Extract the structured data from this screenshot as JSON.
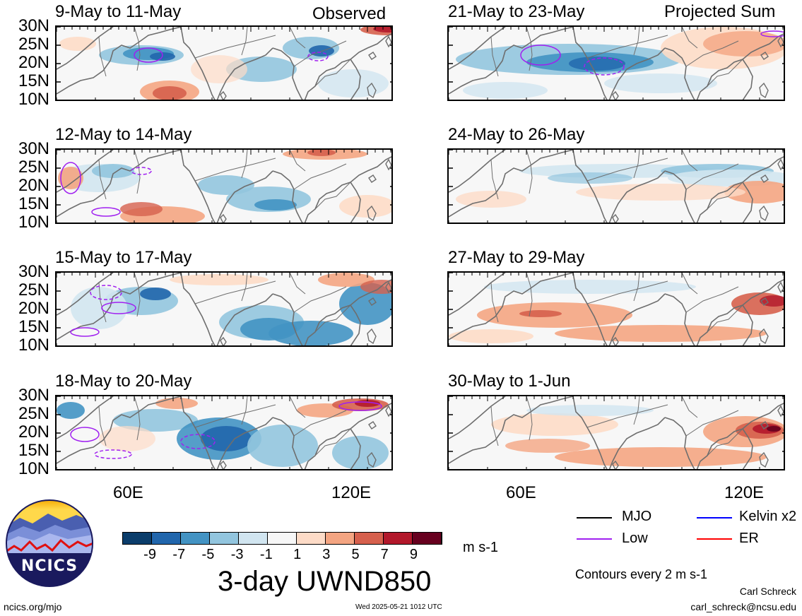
{
  "colors": {
    "neg9": "#0b3d6b",
    "neg7": "#2166ac",
    "neg5": "#4393c3",
    "neg3": "#92c5de",
    "neg1": "#d1e5f0",
    "zero": "#f7f7f7",
    "pos1": "#fddbc7",
    "pos3": "#f4a582",
    "pos5": "#d6604d",
    "pos7": "#b2182b",
    "pos9": "#67001f",
    "coast": "#6e6e6e",
    "mjo": "#000000",
    "low": "#a020f0",
    "kelvin": "#0000ff",
    "er": "#ff0000"
  },
  "headers": {
    "observed": "Observed",
    "projected": "Projected Sum"
  },
  "panels": [
    {
      "label": "9-May to 11-May"
    },
    {
      "label": "12-May to 14-May"
    },
    {
      "label": "15-May to 17-May"
    },
    {
      "label": "18-May to 20-May"
    },
    {
      "label": "21-May to 23-May"
    },
    {
      "label": "24-May to 26-May"
    },
    {
      "label": "27-May to 29-May"
    },
    {
      "label": "30-May to 1-Jun"
    }
  ],
  "y_ticks": [
    "30N",
    "25N",
    "20N",
    "15N",
    "10N"
  ],
  "x_ticks": [
    "60E",
    "120E"
  ],
  "colorbar": {
    "labels": [
      "-9",
      "-7",
      "-5",
      "-3",
      "-1",
      "1",
      "3",
      "5",
      "7",
      "9"
    ],
    "units": "m s-1"
  },
  "title": "3-day UWND850",
  "legend": {
    "mjo": "MJO",
    "low": "Low",
    "kelvin": "Kelvin x2",
    "er": "ER",
    "contours": "Contours every 2 m s-1"
  },
  "logo": {
    "text": "NCICS"
  },
  "footer": {
    "url": "ncics.org/mjo",
    "timestamp": "Wed 2025-05-21 1012 UTC",
    "author": "Carl Schreck",
    "email": "carl_schreck@ncsu.edu"
  }
}
